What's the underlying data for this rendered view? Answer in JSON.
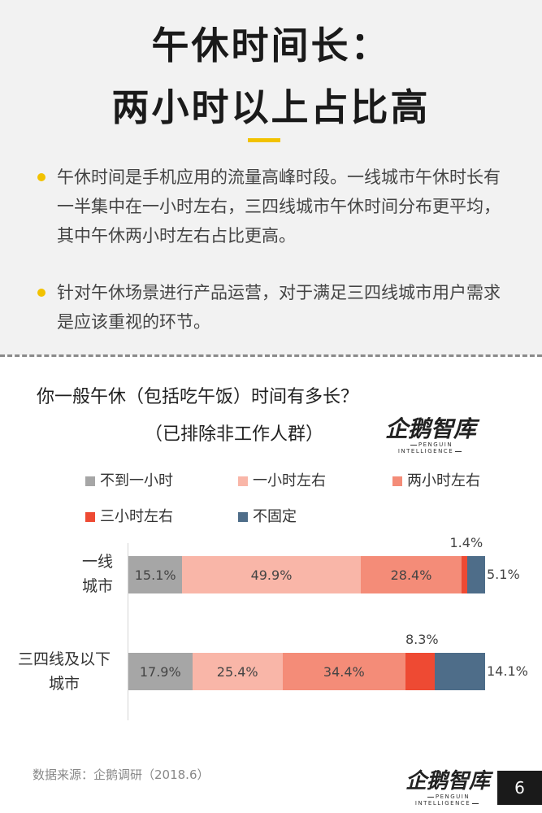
{
  "header": {
    "title_line1": "午休时间长：",
    "title_line2": "两小时以上占比高"
  },
  "bullets": [
    "午休时间是手机应用的流量高峰时段。一线城市午休时长有一半集中在一小时左右，三四线城市午休时间分布更平均，其中午休两小时左右占比更高。",
    "针对午休场景进行产品运营，对于满足三四线城市用户需求是应该重视的环节。"
  ],
  "question": {
    "line1": "你一般午休（包括吃午饭）时间有多长？",
    "line2": "（已排除非工作人群）"
  },
  "logo": {
    "main": "企鹅智库",
    "sub": "PENGUIN INTELLIGENCE"
  },
  "chart_data": {
    "type": "bar",
    "orientation": "horizontal",
    "stacked": true,
    "normalized": true,
    "legend_position": "top",
    "categories": [
      "一线城市",
      "三四线及以下城市"
    ],
    "category_labels": [
      [
        "一线",
        "城市"
      ],
      [
        "三四线及以下",
        "城市"
      ]
    ],
    "series": [
      {
        "name": "不到一小时",
        "color": "#a6a6a6",
        "values": [
          15.1,
          17.9
        ]
      },
      {
        "name": "一小时左右",
        "color": "#f9b6a8",
        "values": [
          49.9,
          25.4
        ]
      },
      {
        "name": "两小时左右",
        "color": "#f48c78",
        "values": [
          28.4,
          34.4
        ]
      },
      {
        "name": "三小时左右",
        "color": "#ee4a33",
        "values": [
          1.4,
          8.3
        ]
      },
      {
        "name": "不固定",
        "color": "#4e6d89",
        "values": [
          5.1,
          14.1
        ]
      }
    ],
    "value_labels": [
      [
        "15.1%",
        "49.9%",
        "28.4%",
        "1.4%",
        "5.1%"
      ],
      [
        "17.9%",
        "25.4%",
        "34.4%",
        "8.3%",
        "14.1%"
      ]
    ],
    "unit": "%"
  },
  "footer": {
    "source": "数据来源：企鹅调研（2018.6）",
    "page_number": "6"
  }
}
